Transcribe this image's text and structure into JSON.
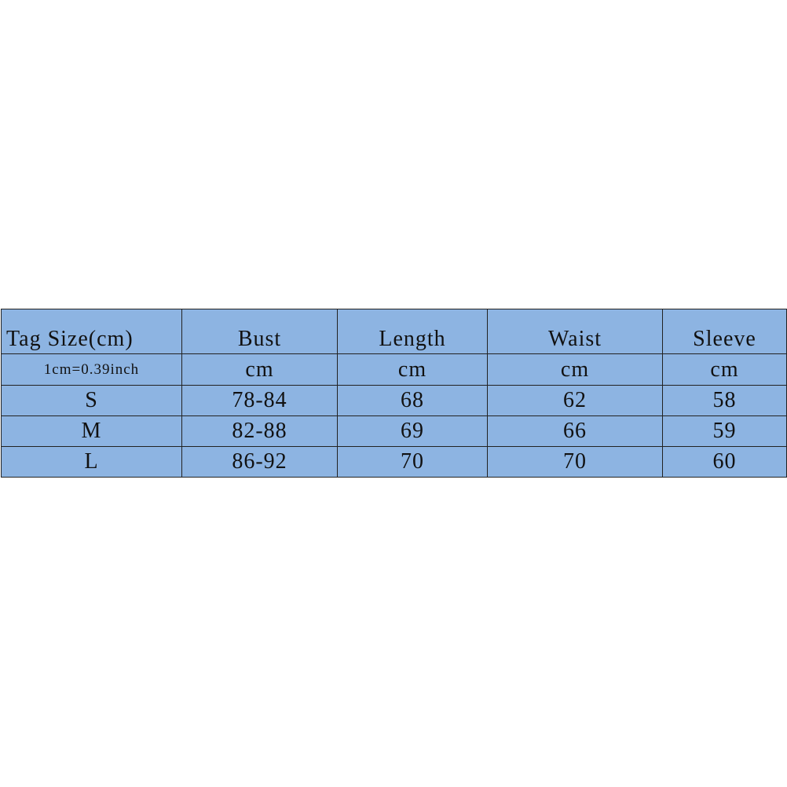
{
  "table": {
    "headers": [
      "Tag Size(cm)",
      "Bust",
      "Length",
      "Waist",
      "Sleeve"
    ],
    "units": [
      "1cm=0.39inch",
      "cm",
      "cm",
      "cm",
      "cm"
    ],
    "rows": [
      [
        "S",
        "78-84",
        "68",
        "62",
        "58"
      ],
      [
        "M",
        "82-88",
        "69",
        "66",
        "59"
      ],
      [
        "L",
        "86-92",
        "70",
        "70",
        "60"
      ]
    ]
  },
  "colors": {
    "cell_background": "#8db4e2",
    "border": "#222222"
  }
}
